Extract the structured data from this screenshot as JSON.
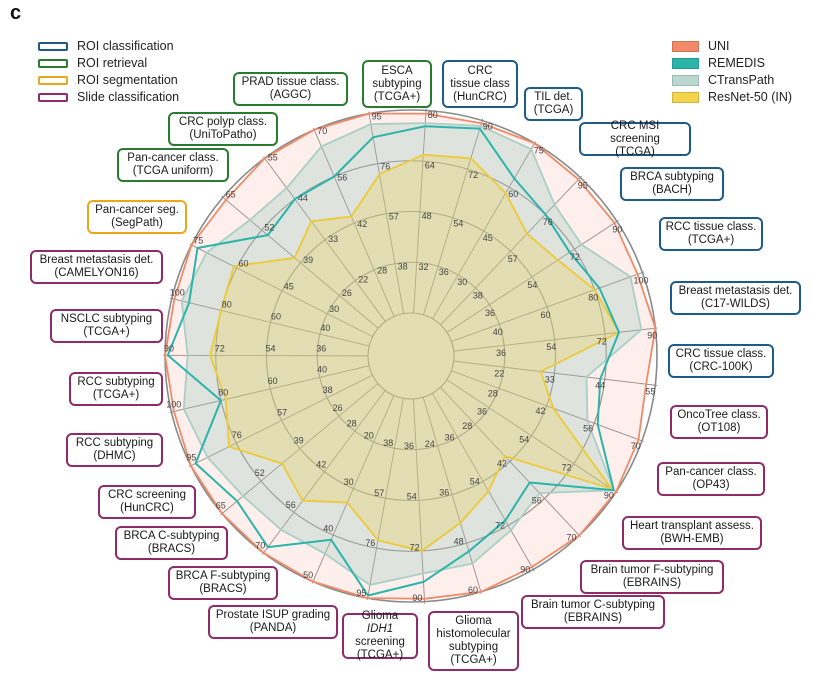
{
  "panel_label": "c",
  "task_legend": [
    {
      "label": "ROI classification",
      "color": "#1f5b8a"
    },
    {
      "label": "ROI retrieval",
      "color": "#2a7b2f"
    },
    {
      "label": "ROI segmentation",
      "color": "#e9a81b"
    },
    {
      "label": "Slide classification",
      "color": "#8e2b68"
    }
  ],
  "model_legend": [
    {
      "label": "UNI",
      "color": "#f08a68"
    },
    {
      "label": "REMEDIS",
      "color": "#2bb5aa"
    },
    {
      "label": "CTransPath",
      "color": "#b9d8d0"
    },
    {
      "label": "ResNet-50 (IN)",
      "color": "#f3d44c"
    }
  ],
  "chart_data": {
    "type": "radar",
    "series": [
      {
        "name": "UNI",
        "color": "#f08a68",
        "fill": "rgba(245,150,125,0.15)"
      },
      {
        "name": "REMEDIS",
        "color": "#2bb5aa",
        "fill": "none"
      },
      {
        "name": "CTransPath",
        "color": "#a9cfc6",
        "fill": "rgba(150,200,190,0.30)"
      },
      {
        "name": "ResNet-50 (IN)",
        "color": "#ecca38",
        "fill": "rgba(240,210,80,0.30)"
      }
    ],
    "axes": [
      {
        "label": "CRC\ntissue class\n(HunCRC)",
        "category": "ROI classification",
        "ticks": [
          "32",
          "48",
          "64",
          "80"
        ],
        "min": 16,
        "max": 80,
        "values": [
          79,
          75,
          76,
          66
        ]
      },
      {
        "label": "TIL det.\n(TCGA)",
        "category": "ROI classification",
        "ticks": [
          "36",
          "54",
          "72",
          "90"
        ],
        "min": 18,
        "max": 90,
        "values": [
          89,
          87,
          88,
          76
        ]
      },
      {
        "label": "CRC MSI screening\n(TCGA)",
        "category": "ROI classification",
        "ticks": [
          "30",
          "45",
          "60",
          "75"
        ],
        "min": 15,
        "max": 75,
        "values": [
          75,
          63,
          73,
          58
        ]
      },
      {
        "label": "BRCA subtyping\n(BACH)",
        "category": "ROI classification",
        "ticks": [
          "38",
          "57",
          "76",
          "95"
        ],
        "min": 19,
        "max": 95,
        "values": [
          94,
          76,
          81,
          66
        ]
      },
      {
        "label": "RCC tissue class.\n(TCGA+)",
        "category": "ROI classification",
        "ticks": [
          "36",
          "54",
          "72",
          "90"
        ],
        "min": 18,
        "max": 90,
        "values": [
          89,
          70,
          75,
          65
        ]
      },
      {
        "label": "Breast metastasis det.\n(C17-WILDS)",
        "category": "ROI classification",
        "ticks": [
          "40",
          "60",
          "80",
          "100"
        ],
        "min": 20,
        "max": 100,
        "values": [
          98,
          82,
          95,
          80
        ]
      },
      {
        "label": "CRC tissue class.\n(CRC-100K)",
        "category": "ROI classification",
        "ticks": [
          "36",
          "54",
          "72",
          "90"
        ],
        "min": 18,
        "max": 90,
        "values": [
          90,
          77,
          85,
          77
        ]
      },
      {
        "label": "OncoTree class.\n(OT108)",
        "category": "ROI classification",
        "ticks": [
          "22",
          "33",
          "44",
          "55"
        ],
        "min": 11,
        "max": 55,
        "values": [
          53,
          43,
          40,
          30
        ]
      },
      {
        "label": "Pan-cancer class.\n(OP43)",
        "category": "ROI classification",
        "ticks": [
          "28",
          "42",
          "56",
          "70"
        ],
        "min": 14,
        "max": 70,
        "values": [
          69,
          57,
          54,
          44
        ]
      },
      {
        "label": "Heart transplant assess.\n(BWH-EMB)",
        "category": "Slide classification",
        "ticks": [
          "36",
          "54",
          "72",
          "90"
        ],
        "min": 18,
        "max": 90,
        "values": [
          90,
          89,
          89,
          88
        ]
      },
      {
        "label": "Brain tumor F-subtyping\n(EBRAINS)",
        "category": "Slide classification",
        "ticks": [
          "28",
          "42",
          "56",
          "70"
        ],
        "min": 14,
        "max": 70,
        "values": [
          70,
          50,
          54,
          40
        ]
      },
      {
        "label": "Brain tumor C-subtyping\n(EBRAINS)",
        "category": "Slide classification",
        "ticks": [
          "36",
          "54",
          "72",
          "90"
        ],
        "min": 18,
        "max": 90,
        "values": [
          89,
          70,
          74,
          58
        ]
      },
      {
        "label": "Glioma\nhistomolecular\nsubtyping\n(TCGA+)",
        "category": "Slide classification",
        "ticks": [
          "24",
          "36",
          "48",
          "60"
        ],
        "min": 12,
        "max": 60,
        "values": [
          60,
          50,
          53,
          43
        ]
      },
      {
        "label": "Glioma IDH1\nscreening\n(TCGA+)",
        "category": "Slide classification",
        "ticks": [
          "36",
          "54",
          "72",
          "90"
        ],
        "min": 18,
        "max": 90,
        "values": [
          89,
          83,
          80,
          72
        ]
      },
      {
        "label": "Prostate ISUP grading\n(PANDA)",
        "category": "Slide classification",
        "ticks": [
          "38",
          "57",
          "76",
          "95"
        ],
        "min": 19,
        "max": 95,
        "values": [
          95,
          94,
          90,
          73
        ]
      },
      {
        "label": "BRCA F-subtyping\n(BRACS)",
        "category": "Slide classification",
        "ticks": [
          "20",
          "30",
          "40",
          "50"
        ],
        "min": 10,
        "max": 50,
        "values": [
          50,
          41,
          44,
          33
        ]
      },
      {
        "label": "BRCA C-subtyping\n(BRACS)",
        "category": "Slide classification",
        "ticks": [
          "28",
          "42",
          "56",
          "70"
        ],
        "min": 14,
        "max": 70,
        "values": [
          70,
          68,
          62,
          52
        ]
      },
      {
        "label": "CRC screening\n(HunCRC)",
        "category": "Slide classification",
        "ticks": [
          "26",
          "39",
          "52",
          "65"
        ],
        "min": 13,
        "max": 65,
        "values": [
          65,
          60,
          58,
          45
        ]
      },
      {
        "label": "RCC subtyping\n(DHMC)",
        "category": "Slide classification",
        "ticks": [
          "38",
          "57",
          "76",
          "95"
        ],
        "min": 19,
        "max": 95,
        "values": [
          95,
          93,
          88,
          79
        ]
      },
      {
        "label": "RCC subtyping\n(TCGA+)",
        "category": "Slide classification",
        "ticks": [
          "40",
          "60",
          "80",
          "100"
        ],
        "min": 20,
        "max": 100,
        "values": [
          99,
          80,
          95,
          78
        ]
      },
      {
        "label": "NSCLC subtyping\n(TCGA+)",
        "category": "Slide classification",
        "ticks": [
          "36",
          "54",
          "72",
          "90"
        ],
        "min": 18,
        "max": 90,
        "values": [
          90,
          89,
          82,
          74
        ]
      },
      {
        "label": "Breast metastasis det.\n(CAMELYON16)",
        "category": "Slide classification",
        "ticks": [
          "40",
          "60",
          "80",
          "100"
        ],
        "min": 20,
        "max": 100,
        "values": [
          99,
          93,
          96,
          80
        ]
      },
      {
        "label": "Pan-cancer seg.\n(SegPath)",
        "category": "ROI segmentation",
        "ticks": [
          "30",
          "45",
          "60",
          "75"
        ],
        "min": 15,
        "max": 75,
        "values": [
          75,
          73,
          70,
          61
        ]
      },
      {
        "label": "Pan-cancer class.\n(TCGA uniform)",
        "category": "ROI retrieval",
        "ticks": [
          "26",
          "39",
          "52",
          "65"
        ],
        "min": 13,
        "max": 65,
        "values": [
          64,
          50,
          56,
          41
        ]
      },
      {
        "label": "CRC polyp class.\n(UniToPatho)",
        "category": "ROI retrieval",
        "ticks": [
          "22",
          "33",
          "44",
          "55"
        ],
        "min": 11,
        "max": 55,
        "values": [
          55,
          44,
          47,
          38
        ]
      },
      {
        "label": "PRAD tissue class.\n(AGGC)",
        "category": "ROI retrieval",
        "ticks": [
          "28",
          "42",
          "56",
          "70"
        ],
        "min": 14,
        "max": 70,
        "values": [
          70,
          56,
          65,
          44
        ]
      },
      {
        "label": "ESCA\nsubtyping\n(TCGA+)",
        "category": "ROI retrieval",
        "ticks": [
          "38",
          "57",
          "76",
          "95"
        ],
        "min": 19,
        "max": 95,
        "values": [
          95,
          86,
          91,
          72
        ]
      }
    ]
  }
}
